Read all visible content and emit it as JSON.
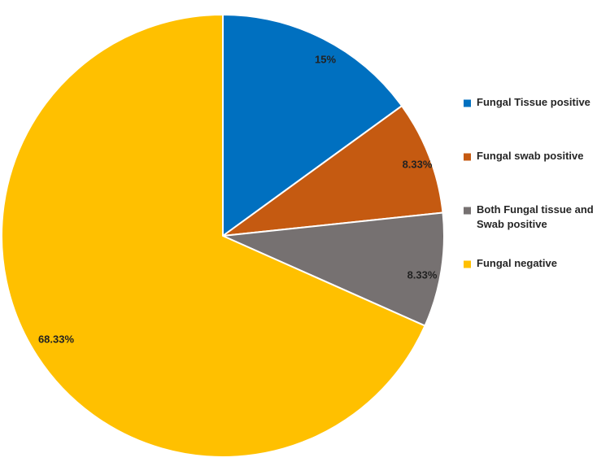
{
  "chart_data": {
    "type": "pie",
    "title": "",
    "slices": [
      {
        "label": "Fungal Tissue positive",
        "legend_lines": [
          "Fungal Tissue positive"
        ],
        "value": 15,
        "value_label": "15%",
        "color": "#0070C0"
      },
      {
        "label": "Fungal swab positive",
        "legend_lines": [
          "Fungal swab positive"
        ],
        "value": 8.33,
        "value_label": "8.33%",
        "color": "#C55A11"
      },
      {
        "label": "Both Fungal tissue and Swab positive",
        "legend_lines": [
          "Both Fungal tissue and",
          "Swab positive"
        ],
        "value": 8.33,
        "value_label": "8.33%",
        "color": "#767171"
      },
      {
        "label": "Fungal negative",
        "legend_lines": [
          "Fungal negative"
        ],
        "value": 68.33,
        "value_label": "68.33%",
        "color": "#FFC000"
      }
    ],
    "start_angle": "12 o'clock",
    "direction": "clockwise",
    "legend_position": "right"
  }
}
